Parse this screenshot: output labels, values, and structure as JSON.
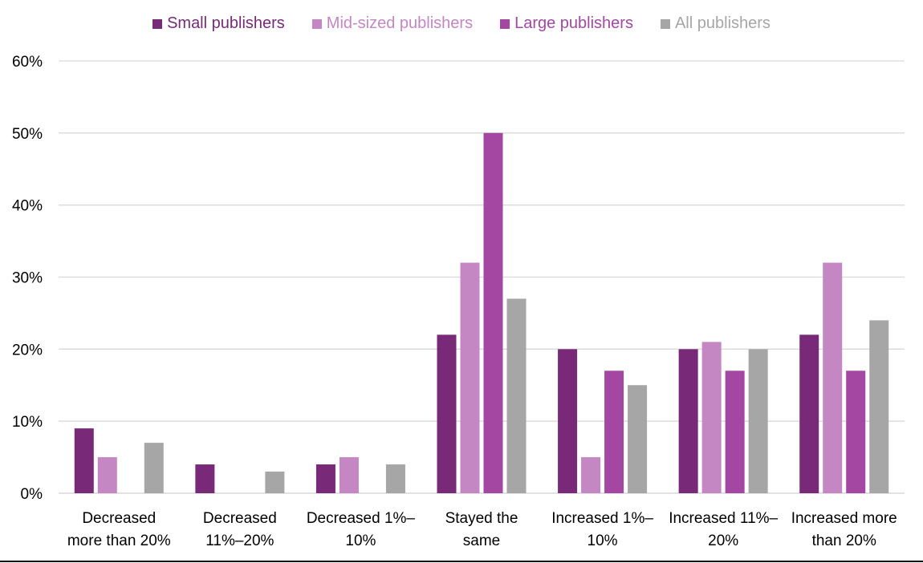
{
  "chart_data": {
    "type": "bar",
    "title": "",
    "xlabel": "",
    "ylabel": "",
    "ylim": [
      0,
      60
    ],
    "yticks": [
      "0%",
      "10%",
      "20%",
      "30%",
      "40%",
      "50%",
      "60%"
    ],
    "grid": true,
    "legend_position": "top-center",
    "categories": [
      [
        "Decreased",
        "more than 20%"
      ],
      [
        "Decreased",
        "11%–20%"
      ],
      [
        "Decreased 1%–",
        "10%"
      ],
      [
        "Stayed the",
        "same"
      ],
      [
        "Increased 1%–",
        "10%"
      ],
      [
        "Increased 11%–",
        "20%"
      ],
      [
        "Increased more",
        "than 20%"
      ]
    ],
    "series": [
      {
        "name": "Small publishers",
        "color": "#782a78",
        "values": [
          9,
          4,
          4,
          22,
          20,
          20,
          22
        ]
      },
      {
        "name": "Mid-sized publishers",
        "color": "#c487c4",
        "values": [
          5,
          0,
          5,
          32,
          5,
          21,
          32
        ]
      },
      {
        "name": "Large publishers",
        "color": "#a347a3",
        "values": [
          0,
          0,
          0,
          50,
          17,
          17,
          17
        ]
      },
      {
        "name": "All publishers",
        "color": "#a6a6a6",
        "values": [
          7,
          3,
          4,
          27,
          15,
          20,
          24
        ]
      }
    ]
  }
}
